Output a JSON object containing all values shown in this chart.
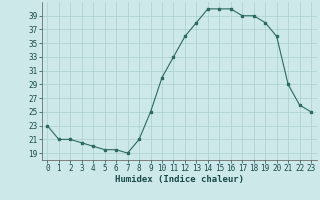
{
  "x": [
    0,
    1,
    2,
    3,
    4,
    5,
    6,
    7,
    8,
    9,
    10,
    11,
    12,
    13,
    14,
    15,
    16,
    17,
    18,
    19,
    20,
    21,
    22,
    23
  ],
  "y": [
    23,
    21,
    21,
    20.5,
    20,
    19.5,
    19.5,
    19,
    21,
    25,
    30,
    33,
    36,
    38,
    40,
    40,
    40,
    39,
    39,
    38,
    36,
    29,
    26,
    25
  ],
  "xlabel": "Humidex (Indice chaleur)",
  "xlim": [
    -0.5,
    23.5
  ],
  "ylim": [
    18,
    41
  ],
  "yticks": [
    19,
    21,
    23,
    25,
    27,
    29,
    31,
    33,
    35,
    37,
    39
  ],
  "xticks": [
    0,
    1,
    2,
    3,
    4,
    5,
    6,
    7,
    8,
    9,
    10,
    11,
    12,
    13,
    14,
    15,
    16,
    17,
    18,
    19,
    20,
    21,
    22,
    23
  ],
  "line_color": "#2d6b5e",
  "marker": "s",
  "marker_size": 2,
  "bg_color": "#cce8e8",
  "grid_color": "#aacfcf",
  "label_fontsize": 6.5,
  "tick_fontsize": 5.5
}
